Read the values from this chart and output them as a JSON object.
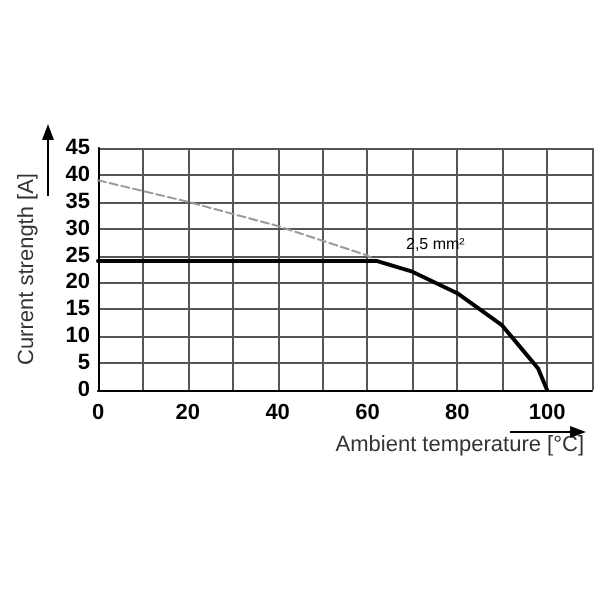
{
  "chart_data": {
    "type": "line",
    "xlabel": "Ambient temperature [°C]",
    "ylabel": "Current strength [A]",
    "series": [
      {
        "color": "#999999",
        "line_style": "dashed",
        "x": [
          0,
          20,
          40,
          60,
          62
        ],
        "values": [
          39,
          35,
          30.5,
          25,
          24
        ]
      },
      {
        "color": "#000000",
        "line_style": "solid",
        "x": [
          0,
          62,
          70,
          80,
          90,
          95,
          98,
          100
        ],
        "values": [
          24,
          24,
          22,
          18,
          12,
          7,
          4,
          0
        ]
      }
    ],
    "annotations": [
      "2,5 mm²"
    ],
    "xlim": [
      0,
      110
    ],
    "xticks": [
      0,
      {
        "value": 10,
        "label": null
      },
      20,
      {
        "value": 30,
        "label": null
      },
      40,
      {
        "value": 50,
        "label": null
      },
      60,
      {
        "value": 70,
        "label": null
      },
      80,
      {
        "value": 90,
        "label": null
      },
      100,
      {
        "value": 110,
        "label": null
      }
    ],
    "ylim": [
      0,
      45
    ],
    "yticks": [
      0,
      5,
      10,
      15,
      20,
      25,
      30,
      35,
      40,
      45
    ],
    "grid": true,
    "marker": "none"
  }
}
